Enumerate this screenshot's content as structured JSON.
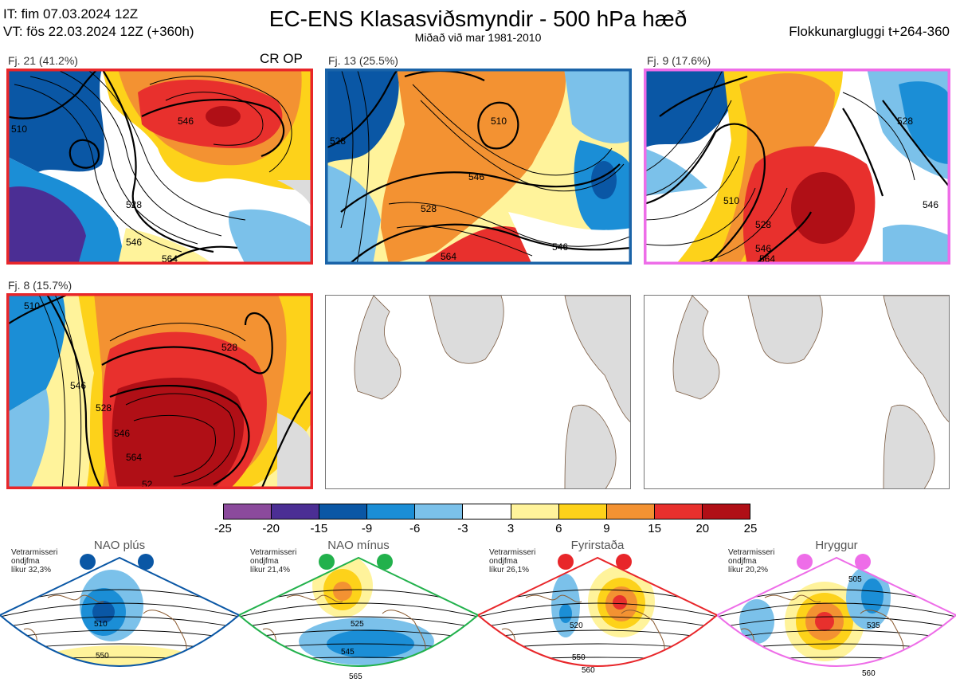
{
  "header": {
    "it": "IT: fim 07.03.2024 12Z",
    "vt": "VT: fös 22.03.2024 12Z  (+360h)",
    "title": "EC-ENS Klasasviðsmyndir - 500 hPa hæð",
    "subtitle": "Miðað við mar 1981-2010",
    "window": "Flokkunargluggi t+264-360"
  },
  "panels": [
    {
      "label": "Fj. 21 (41.2%)",
      "tag": "CR OP",
      "frame": "#e8262a",
      "contours": [
        "510",
        "546",
        "528",
        "546",
        "564"
      ]
    },
    {
      "label": "Fj. 13 (25.5%)",
      "tag": "",
      "frame": "#1a63a8",
      "contours": [
        "528",
        "510",
        "546",
        "528",
        "564",
        "546"
      ]
    },
    {
      "label": "Fj. 9 (17.6%)",
      "tag": "",
      "frame": "#ee6de8",
      "contours": [
        "528",
        "510",
        "528",
        "546",
        "564",
        "546"
      ]
    },
    {
      "label": "Fj. 8 (15.7%)",
      "tag": "",
      "frame": "#e8262a",
      "contours": [
        "510",
        "528",
        "546",
        "528",
        "546",
        "564",
        "52"
      ]
    }
  ],
  "colorbar": {
    "colors": [
      "#8b4a9c",
      "#4b2e94",
      "#0a57a5",
      "#1b8ed6",
      "#7bc1ea",
      "#ffffff",
      "#fff39b",
      "#fdd21a",
      "#f39232",
      "#e8302d",
      "#b00f16"
    ],
    "ticks": [
      "-25",
      "-20",
      "-15",
      "-9",
      "-6",
      "-3",
      "3",
      "6",
      "9",
      "15",
      "20",
      "25"
    ]
  },
  "regimes": [
    {
      "title": "NAO plús",
      "note": "Vetrarmisseri\nondjfma\nlíkur 32,3%",
      "color": "#0a57a5",
      "labels": [
        "510",
        "550"
      ]
    },
    {
      "title": "NAO mínus",
      "note": "Vetrarmisseri\nondjfma\nlíkur 21,4%",
      "color": "#22b14c",
      "labels": [
        "525",
        "545",
        "565"
      ]
    },
    {
      "title": "Fyrirstaða",
      "note": "Vetrarmisseri\nondjfma\nlíkur 26,1%",
      "color": "#e8262a",
      "labels": [
        "520",
        "550",
        "560"
      ]
    },
    {
      "title": "Hryggur",
      "note": "Vetrarmisseri\nondjfma\nlíkur 20,2%",
      "color": "#ee6de8",
      "labels": [
        "505",
        "535",
        "560"
      ]
    }
  ]
}
